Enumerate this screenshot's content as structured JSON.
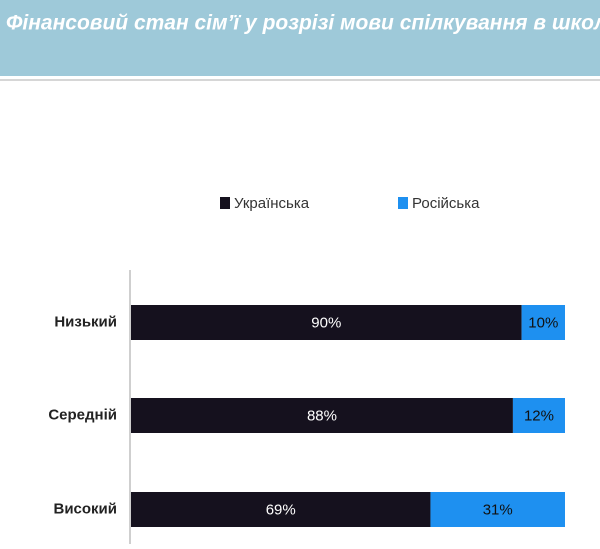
{
  "chart_data": {
    "type": "stacked-bar",
    "orientation": "horizontal",
    "title": "Фінансовий стан сім’ї у розрізі мови спілкування в школі",
    "categories": [
      "Низький",
      "Середній",
      "Високий"
    ],
    "series": [
      {
        "name": "Українська",
        "color": "#15111e",
        "values": [
          90,
          88,
          69
        ],
        "value_labels": [
          "90%",
          "88%",
          "69%"
        ]
      },
      {
        "name": "Російська",
        "color": "#1e90f0",
        "values": [
          10,
          12,
          31
        ],
        "value_labels": [
          "10%",
          "12%",
          "31%"
        ]
      }
    ]
  }
}
